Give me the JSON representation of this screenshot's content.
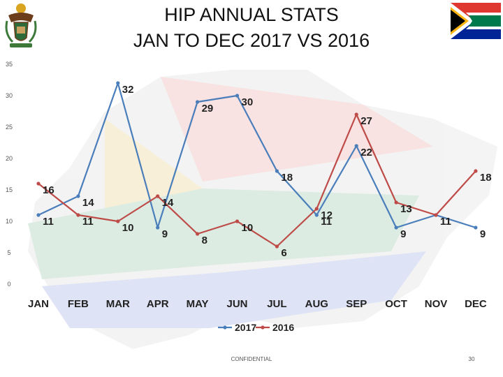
{
  "header": {
    "title_line1": "HIP ANNUAL STATS",
    "title_line2": "JAN TO DEC 2017 VS 2016"
  },
  "footer": {
    "confidential": "CONFIDENTIAL",
    "page_number": "30"
  },
  "logos": {
    "left": "coat-of-arms",
    "right": "south-africa-flag"
  },
  "colors": {
    "series_2017": "#4a7ebb",
    "series_2016": "#be4b48"
  },
  "chart_data": {
    "type": "line",
    "categories": [
      "JAN",
      "FEB",
      "MAR",
      "APR",
      "MAY",
      "JUN",
      "JUL",
      "AUG",
      "SEP",
      "OCT",
      "NOV",
      "DEC"
    ],
    "series": [
      {
        "name": "2017",
        "values": [
          11,
          14,
          32,
          9,
          29,
          30,
          18,
          11,
          22,
          9,
          11,
          9
        ]
      },
      {
        "name": "2016",
        "values": [
          16,
          11,
          10,
          14,
          8,
          10,
          6,
          12,
          27,
          13,
          11,
          18
        ]
      }
    ],
    "y_ticks": [
      0,
      5,
      10,
      15,
      20,
      25,
      30,
      35
    ],
    "ylim": [
      0,
      35
    ],
    "legend": "bottom",
    "grid": false
  }
}
